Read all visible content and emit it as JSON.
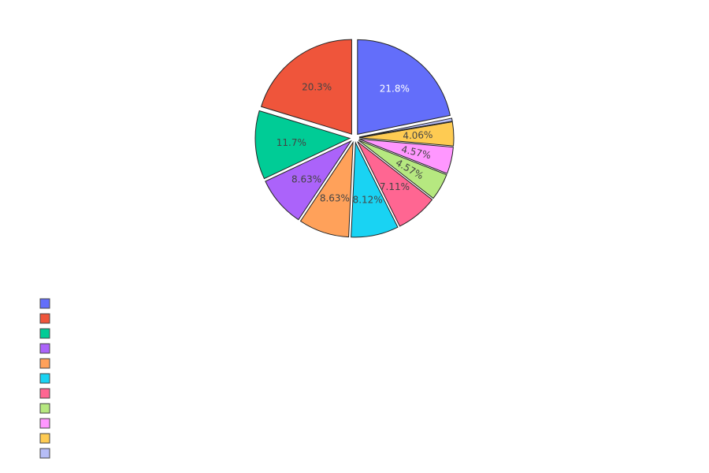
{
  "chart_data": {
    "type": "pie",
    "title": "",
    "slices": [
      {
        "label": "21.8%",
        "value": 21.8,
        "color": "#636efa",
        "text_color": "#ffffff"
      },
      {
        "label": "",
        "value": 0.51,
        "color": "#b6bdf6",
        "text_color": "#444444"
      },
      {
        "label": "4.06%",
        "value": 4.06,
        "color": "#fecb52",
        "text_color": "#444444"
      },
      {
        "label": "4.57%",
        "value": 4.57,
        "color": "#ff97ff",
        "text_color": "#444444"
      },
      {
        "label": "4.57%",
        "value": 4.57,
        "color": "#b6e880",
        "text_color": "#444444"
      },
      {
        "label": "7.11%",
        "value": 7.11,
        "color": "#ff6692",
        "text_color": "#444444"
      },
      {
        "label": "8.12%",
        "value": 8.12,
        "color": "#19d3f3",
        "text_color": "#444444"
      },
      {
        "label": "8.63%",
        "value": 8.63,
        "color": "#ffa15a",
        "text_color": "#444444"
      },
      {
        "label": "8.63%",
        "value": 8.63,
        "color": "#ab63fa",
        "text_color": "#444444"
      },
      {
        "label": "11.7%",
        "value": 11.7,
        "color": "#00cc96",
        "text_color": "#444444"
      },
      {
        "label": "20.3%",
        "value": 20.3,
        "color": "#ef553b",
        "text_color": "#444444"
      }
    ],
    "direction": "clockwise",
    "start_angle_deg": 0,
    "exploded": true,
    "legend": {
      "placement": "bottom-left",
      "entries": [
        "",
        "",
        "",
        "",
        "",
        "",
        "",
        "",
        "",
        "",
        ""
      ],
      "colors": [
        "#636efa",
        "#ef553b",
        "#00cc96",
        "#ab63fa",
        "#ffa15a",
        "#19d3f3",
        "#ff6692",
        "#b6e880",
        "#ff97ff",
        "#fecb52",
        "#b6bdf6"
      ]
    }
  }
}
